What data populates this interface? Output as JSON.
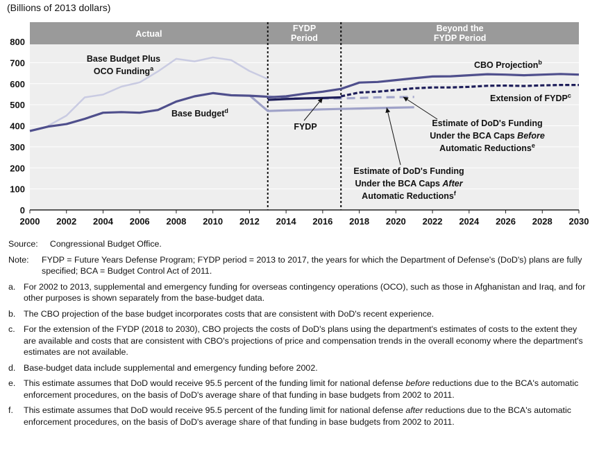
{
  "chart_data": {
    "type": "line",
    "ylabel": "(Billions of 2013 dollars)",
    "xlim": [
      2000,
      2030
    ],
    "ylim": [
      0,
      800
    ],
    "x_ticks": [
      2000,
      2002,
      2004,
      2006,
      2008,
      2010,
      2012,
      2014,
      2016,
      2018,
      2020,
      2022,
      2024,
      2026,
      2028,
      2030
    ],
    "y_ticks": [
      0,
      100,
      200,
      300,
      400,
      500,
      600,
      700,
      800
    ],
    "periods": [
      {
        "name": "Actual",
        "from": 2000,
        "to": 2013
      },
      {
        "name": "FYDP\nPeriod",
        "from": 2013,
        "to": 2017
      },
      {
        "name": "Beyond the\nFYDP Period",
        "from": 2017,
        "to": 2030
      }
    ],
    "series": [
      {
        "name": "Base Budget Plus\nOCO Funding",
        "footnote": "a",
        "color": "#c9cbe2",
        "style": "solid",
        "points": [
          [
            2001,
            400
          ],
          [
            2002,
            448
          ],
          [
            2003,
            535
          ],
          [
            2004,
            548
          ],
          [
            2005,
            586
          ],
          [
            2006,
            606
          ],
          [
            2007,
            658
          ],
          [
            2008,
            718
          ],
          [
            2009,
            706
          ],
          [
            2010,
            725
          ],
          [
            2011,
            712
          ],
          [
            2012,
            660
          ],
          [
            2013,
            622
          ]
        ]
      },
      {
        "name": "Base Budget",
        "footnote": "d",
        "color": "#4f4f8c",
        "style": "solid",
        "points": [
          [
            2000,
            375
          ],
          [
            2001,
            396
          ],
          [
            2002,
            408
          ],
          [
            2003,
            433
          ],
          [
            2004,
            462
          ],
          [
            2005,
            465
          ],
          [
            2006,
            462
          ],
          [
            2007,
            475
          ],
          [
            2008,
            515
          ],
          [
            2009,
            540
          ],
          [
            2010,
            555
          ],
          [
            2011,
            545
          ],
          [
            2012,
            543
          ],
          [
            2013,
            538
          ]
        ]
      },
      {
        "name": "FYDP",
        "color": "#1e1e5a",
        "style": "solid",
        "points": [
          [
            2013,
            523
          ],
          [
            2014,
            527
          ],
          [
            2015,
            530
          ],
          [
            2016,
            532
          ],
          [
            2017,
            535
          ]
        ]
      },
      {
        "name": "CBO Projection",
        "footnote": "b",
        "color": "#4f4f8c",
        "style": "solid",
        "points": [
          [
            2013,
            535
          ],
          [
            2014,
            540
          ],
          [
            2015,
            552
          ],
          [
            2016,
            562
          ],
          [
            2017,
            575
          ],
          [
            2018,
            605
          ],
          [
            2019,
            608
          ],
          [
            2020,
            617
          ],
          [
            2021,
            626
          ],
          [
            2022,
            634
          ],
          [
            2023,
            635
          ],
          [
            2024,
            640
          ],
          [
            2025,
            645
          ],
          [
            2026,
            643
          ],
          [
            2027,
            640
          ],
          [
            2028,
            643
          ],
          [
            2029,
            646
          ],
          [
            2030,
            643
          ]
        ]
      },
      {
        "name": "Extension of FYDP",
        "footnote": "c",
        "color": "#1e1e5a",
        "style": "dashed",
        "points": [
          [
            2017,
            540
          ],
          [
            2018,
            558
          ],
          [
            2019,
            562
          ],
          [
            2020,
            570
          ],
          [
            2021,
            578
          ],
          [
            2022,
            582
          ],
          [
            2023,
            582
          ],
          [
            2024,
            585
          ],
          [
            2025,
            590
          ],
          [
            2026,
            591
          ],
          [
            2027,
            589
          ],
          [
            2028,
            592
          ],
          [
            2029,
            594
          ],
          [
            2030,
            594
          ]
        ]
      },
      {
        "name": "Estimate of DoD's Funding\nUnder the BCA Caps Before\nAutomatic Reductions",
        "footnote": "e",
        "color": "#a4a7cc",
        "style": "dashed",
        "points": [
          [
            2013,
            540
          ],
          [
            2014,
            530
          ],
          [
            2015,
            530
          ],
          [
            2016,
            530
          ],
          [
            2017,
            530
          ],
          [
            2018,
            532
          ],
          [
            2019,
            535
          ],
          [
            2020,
            536
          ],
          [
            2021,
            537
          ]
        ]
      },
      {
        "name": "Estimate of DoD's Funding\nUnder the BCA Caps After\nAutomatic Reductions",
        "footnote": "f",
        "color": "#9fa2c8",
        "style": "solid",
        "points": [
          [
            2012,
            545
          ],
          [
            2013,
            470
          ],
          [
            2014,
            473
          ],
          [
            2015,
            475
          ],
          [
            2016,
            478
          ],
          [
            2017,
            480
          ],
          [
            2018,
            482
          ],
          [
            2019,
            484
          ],
          [
            2020,
            486
          ],
          [
            2021,
            488
          ]
        ]
      }
    ]
  },
  "notes": {
    "source_label": "Source:",
    "source_text": "Congressional Budget Office.",
    "note_label": "Note:",
    "note_text": "FYDP = Future Years Defense Program; FYDP period = 2013 to 2017, the years for which the Department of Defense's (DoD's) plans are fully specified; BCA = Budget Control Act of 2011.",
    "footnotes": [
      {
        "label": "a.",
        "text": "For 2002 to 2013, supplemental and emergency funding for overseas contingency operations (OCO), such as those in Afghanistan and Iraq, and for other purposes is shown separately from the base-budget data."
      },
      {
        "label": "b.",
        "text": "The CBO projection of the base budget incorporates costs that are consistent with DoD's recent experience."
      },
      {
        "label": "c.",
        "text": "For the extension of the FYDP (2018 to 2030), CBO projects the costs of DoD's plans using the department's estimates of costs to the extent they are available and costs that are consistent with CBO's projections of price and compensation trends in the overall economy where the department's estimates are not available."
      },
      {
        "label": "d.",
        "text": "Base-budget data include supplemental and emergency funding before 2002."
      },
      {
        "label": "e.",
        "pre": "This estimate assumes that DoD would receive 95.5 percent of the funding limit for national defense ",
        "em": "before",
        "post": " reductions due to the BCA's automatic enforcement procedures, on the basis of DoD's average share of that funding in base budgets from 2002 to 2011."
      },
      {
        "label": "f.",
        "pre": "This estimate assumes that DoD would receive 95.5 percent of the funding limit for national defense ",
        "em": "after",
        "post": " reductions due to the BCA's automatic enforcement procedures, on the basis of DoD's average share of that funding in base budgets from 2002 to 2011."
      }
    ]
  }
}
